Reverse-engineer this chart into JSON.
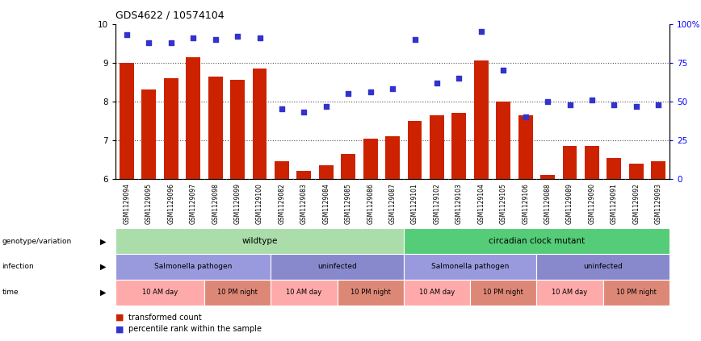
{
  "title": "GDS4622 / 10574104",
  "samples": [
    "GSM1129094",
    "GSM1129095",
    "GSM1129096",
    "GSM1129097",
    "GSM1129098",
    "GSM1129099",
    "GSM1129100",
    "GSM1129082",
    "GSM1129083",
    "GSM1129084",
    "GSM1129085",
    "GSM1129086",
    "GSM1129087",
    "GSM1129101",
    "GSM1129102",
    "GSM1129103",
    "GSM1129104",
    "GSM1129105",
    "GSM1129106",
    "GSM1129088",
    "GSM1129089",
    "GSM1129090",
    "GSM1129091",
    "GSM1129092",
    "GSM1129093"
  ],
  "bar_values": [
    9.0,
    8.3,
    8.6,
    9.15,
    8.65,
    8.55,
    8.85,
    6.45,
    6.2,
    6.35,
    6.65,
    7.05,
    7.1,
    7.5,
    7.65,
    7.7,
    9.05,
    8.0,
    7.65,
    6.1,
    6.85,
    6.85,
    6.55,
    6.4,
    6.45
  ],
  "dot_values": [
    93,
    88,
    88,
    91,
    90,
    92,
    91,
    45,
    43,
    47,
    55,
    56,
    58,
    90,
    62,
    65,
    95,
    70,
    40,
    50,
    48,
    51,
    48,
    47,
    48
  ],
  "ylim_left": [
    6,
    10
  ],
  "ylim_right": [
    0,
    100
  ],
  "yticks_left": [
    6,
    7,
    8,
    9,
    10
  ],
  "yticks_right": [
    0,
    25,
    50,
    75,
    100
  ],
  "bar_color": "#CC2200",
  "dot_color": "#3333CC",
  "dotted_line_color": "#555555",
  "genotype_wildtype_color": "#AADDAA",
  "genotype_mutant_color": "#55CC77",
  "infection_salmonella_color": "#9999DD",
  "infection_uninfected_color": "#8888CC",
  "time_day_color": "#FFAAAA",
  "time_night_color": "#DD8877",
  "xticklabel_bg": "#CCCCCC",
  "genotype_groups": [
    {
      "label": "wildtype",
      "count": 13
    },
    {
      "label": "circadian clock mutant",
      "count": 12
    }
  ],
  "infection_groups": [
    {
      "label": "Salmonella pathogen",
      "count": 7,
      "color": "#9999DD"
    },
    {
      "label": "uninfected",
      "count": 6,
      "color": "#8888CC"
    },
    {
      "label": "Salmonella pathogen",
      "count": 6,
      "color": "#9999DD"
    },
    {
      "label": "uninfected",
      "count": 6,
      "color": "#8888CC"
    }
  ],
  "time_groups": [
    {
      "label": "10 AM day",
      "count": 4,
      "color": "#FFAAAA"
    },
    {
      "label": "10 PM night",
      "count": 3,
      "color": "#DD8877"
    },
    {
      "label": "10 AM day",
      "count": 3,
      "color": "#FFAAAA"
    },
    {
      "label": "10 PM night",
      "count": 3,
      "color": "#DD8877"
    },
    {
      "label": "10 AM day",
      "count": 3,
      "color": "#FFAAAA"
    },
    {
      "label": "10 PM night",
      "count": 3,
      "color": "#DD8877"
    },
    {
      "label": "10 AM day",
      "count": 3,
      "color": "#FFAAAA"
    },
    {
      "label": "10 PM night",
      "count": 3,
      "color": "#DD8877"
    }
  ]
}
